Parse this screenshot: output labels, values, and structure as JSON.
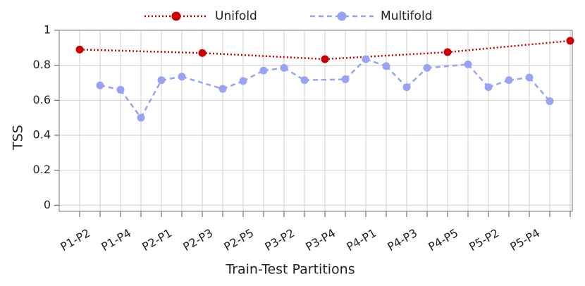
{
  "chart_data": {
    "type": "line",
    "x_label": "Train-Test Partitions",
    "y_label": "TSS",
    "categories": [
      "P1-P2",
      null,
      "P1-P4",
      null,
      "P2-P1",
      null,
      "P2-P3",
      null,
      "P2-P5",
      null,
      "P3-P2",
      null,
      "P3-P4",
      null,
      "P4-P1",
      null,
      "P4-P3",
      null,
      "P4-P5",
      null,
      "P5-P2",
      null,
      "P5-P4",
      null,
      null
    ],
    "series": [
      {
        "name": "Unifold",
        "color": "#cc0000",
        "style": "dotted",
        "values": [
          0.89,
          null,
          null,
          null,
          null,
          null,
          0.87,
          null,
          null,
          null,
          null,
          null,
          0.835,
          null,
          null,
          null,
          null,
          null,
          0.875,
          null,
          null,
          null,
          null,
          null,
          0.94
        ]
      },
      {
        "name": "Multifold",
        "color": "#99a3f5",
        "style": "dashed",
        "values": [
          null,
          0.685,
          0.66,
          0.5,
          0.715,
          0.735,
          null,
          0.665,
          0.71,
          0.77,
          0.785,
          0.715,
          null,
          0.72,
          0.835,
          0.795,
          0.675,
          0.785,
          null,
          0.805,
          0.675,
          0.715,
          0.73,
          0.595,
          null
        ]
      }
    ],
    "ylim": [
      -0.035,
      1
    ],
    "yticks": [
      0,
      0.2,
      0.4,
      0.6,
      0.8,
      1
    ],
    "grid": true,
    "legend": "top"
  }
}
